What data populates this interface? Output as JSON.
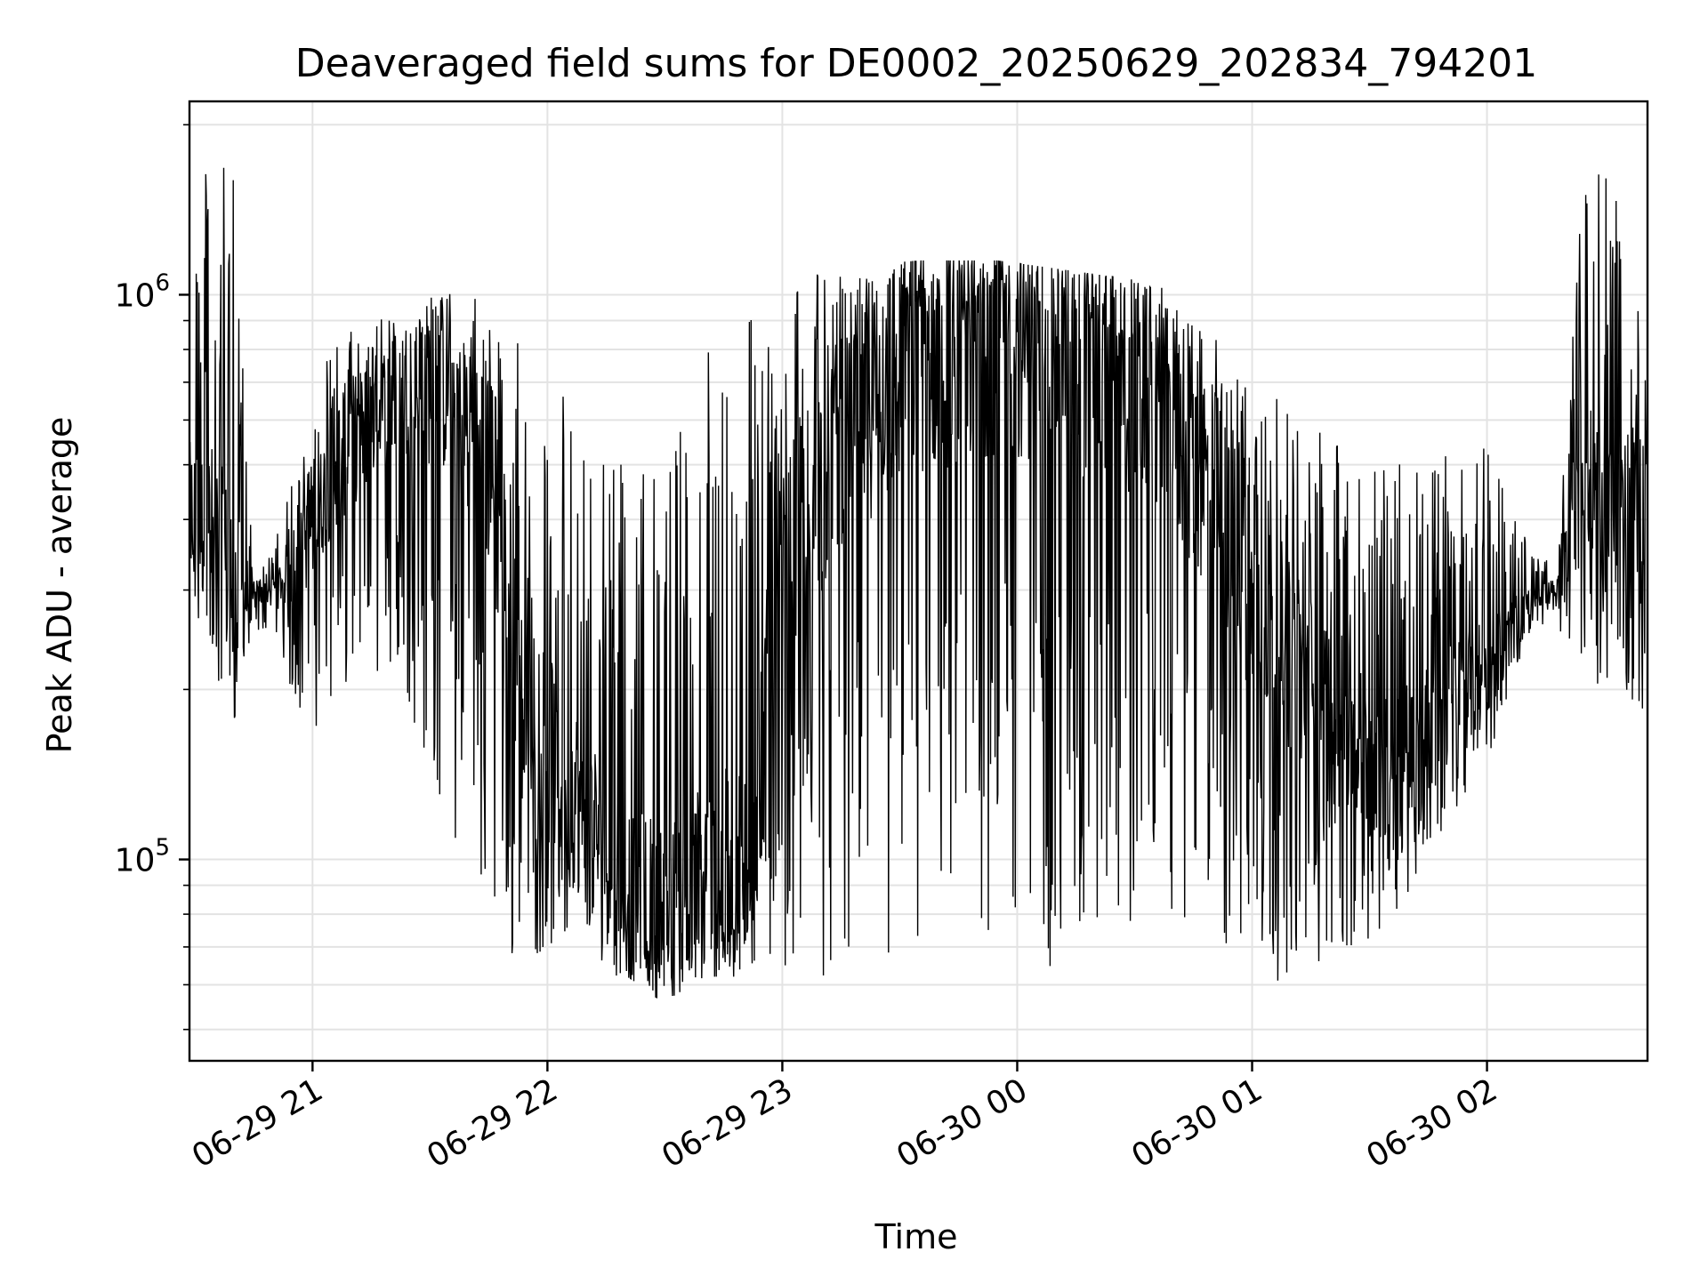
{
  "chart_data": {
    "type": "line",
    "title": "Deaveraged field sums for DE0002_20250629_202834_794201",
    "xlabel": "Time",
    "ylabel": "Peak ADU - average",
    "y_scale": "log",
    "ylim": [
      44000,
      2200000
    ],
    "x_range": [
      "2025-06-29 20:28:34",
      "2025-06-30 02:41:00"
    ],
    "grid": true,
    "line_color": "#000000",
    "x_ticks": [
      {
        "time": "2025-06-29 21:00",
        "label": "06-29 21"
      },
      {
        "time": "2025-06-29 22:00",
        "label": "06-29 22"
      },
      {
        "time": "2025-06-29 23:00",
        "label": "06-29 23"
      },
      {
        "time": "2025-06-30 00:00",
        "label": "06-30 00"
      },
      {
        "time": "2025-06-30 01:00",
        "label": "06-30 01"
      },
      {
        "time": "2025-06-30 02:00",
        "label": "06-30 02"
      }
    ],
    "y_ticks": [
      {
        "value": 100000,
        "base": "10",
        "exp": "5"
      },
      {
        "value": 1000000,
        "base": "10",
        "exp": "6"
      }
    ],
    "series": [
      {
        "style": "noisy-envelope",
        "profile": [
          {
            "time": "2025-06-29 20:28:34",
            "base": 420000,
            "low": 280000,
            "high": 1300000
          },
          {
            "time": "2025-06-29 20:34",
            "base": 380000,
            "low": 200000,
            "high": 1800000
          },
          {
            "time": "2025-06-29 20:40",
            "base": 300000,
            "low": 170000,
            "high": 1600000
          },
          {
            "time": "2025-06-29 20:45",
            "base": 290000,
            "low": 250000,
            "high": 330000
          },
          {
            "time": "2025-06-29 20:50",
            "base": 300000,
            "low": 260000,
            "high": 350000
          },
          {
            "time": "2025-06-29 20:55",
            "base": 330000,
            "low": 190000,
            "high": 500000
          },
          {
            "time": "2025-06-29 21:00",
            "base": 380000,
            "low": 170000,
            "high": 550000
          },
          {
            "time": "2025-06-29 21:05",
            "base": 500000,
            "low": 180000,
            "high": 900000
          },
          {
            "time": "2025-06-29 21:15",
            "base": 600000,
            "low": 200000,
            "high": 880000
          },
          {
            "time": "2025-06-29 21:25",
            "base": 700000,
            "low": 180000,
            "high": 1000000
          },
          {
            "time": "2025-06-29 21:35",
            "base": 700000,
            "low": 110000,
            "high": 1050000
          },
          {
            "time": "2025-06-29 21:45",
            "base": 500000,
            "low": 80000,
            "high": 950000
          },
          {
            "time": "2025-06-29 21:52",
            "base": 250000,
            "low": 62000,
            "high": 850000
          },
          {
            "time": "2025-06-29 22:00",
            "base": 160000,
            "low": 70000,
            "high": 820000
          },
          {
            "time": "2025-06-29 22:10",
            "base": 120000,
            "low": 70000,
            "high": 620000
          },
          {
            "time": "2025-06-29 22:20",
            "base": 90000,
            "low": 60000,
            "high": 520000
          },
          {
            "time": "2025-06-29 22:30",
            "base": 80000,
            "low": 56000,
            "high": 460000
          },
          {
            "time": "2025-06-29 22:40",
            "base": 90000,
            "low": 62000,
            "high": 900000
          },
          {
            "time": "2025-06-29 22:50",
            "base": 90000,
            "low": 62000,
            "high": 1000000
          },
          {
            "time": "2025-06-29 23:00",
            "base": 300000,
            "low": 65000,
            "high": 1080000
          },
          {
            "time": "2025-06-29 23:15",
            "base": 600000,
            "low": 60000,
            "high": 1120000
          },
          {
            "time": "2025-06-29 23:35",
            "base": 800000,
            "low": 60000,
            "high": 1150000
          },
          {
            "time": "2025-06-29 23:55",
            "base": 850000,
            "low": 70000,
            "high": 1150000
          },
          {
            "time": "2025-06-30 00:15",
            "base": 800000,
            "low": 60000,
            "high": 1100000
          },
          {
            "time": "2025-06-30 00:35",
            "base": 650000,
            "low": 80000,
            "high": 1050000
          },
          {
            "time": "2025-06-30 00:50",
            "base": 450000,
            "low": 70000,
            "high": 900000
          },
          {
            "time": "2025-06-30 01:00",
            "base": 300000,
            "low": 60000,
            "high": 700000
          },
          {
            "time": "2025-06-30 01:15",
            "base": 200000,
            "low": 62000,
            "high": 600000
          },
          {
            "time": "2025-06-30 01:30",
            "base": 150000,
            "low": 68000,
            "high": 500000
          },
          {
            "time": "2025-06-30 01:45",
            "base": 170000,
            "low": 100000,
            "high": 520000
          },
          {
            "time": "2025-06-30 02:00",
            "base": 220000,
            "low": 150000,
            "high": 550000
          },
          {
            "time": "2025-06-30 02:12",
            "base": 290000,
            "low": 260000,
            "high": 340000
          },
          {
            "time": "2025-06-30 02:18",
            "base": 300000,
            "low": 260000,
            "high": 350000
          },
          {
            "time": "2025-06-30 02:25",
            "base": 500000,
            "low": 200000,
            "high": 1800000
          },
          {
            "time": "2025-06-30 02:34",
            "base": 400000,
            "low": 200000,
            "high": 1500000
          },
          {
            "time": "2025-06-30 02:41",
            "base": 450000,
            "low": 150000,
            "high": 800000
          }
        ]
      }
    ]
  }
}
